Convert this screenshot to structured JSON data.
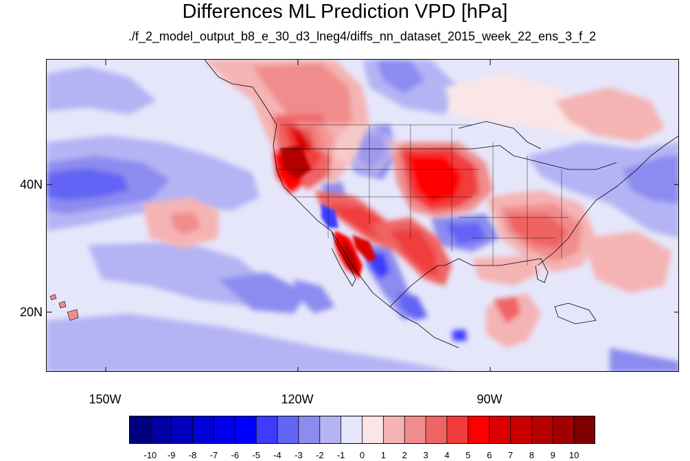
{
  "title": "Differences ML Prediction VPD [hPa]",
  "subtitle": "./f_2_model_output_b8_e_30_d3_lneg4/diffs_nn_dataset_2015_week_22_ens_3_f_2",
  "axes": {
    "longitude_labels": [
      "150W",
      "120W",
      "90W"
    ],
    "latitude_labels": [
      "40N",
      "20N"
    ]
  },
  "colorbar": {
    "labels": [
      "-10",
      "-9",
      "-8",
      "-7",
      "-6",
      "-5",
      "-4",
      "-3",
      "-2",
      "-1",
      "0",
      "1",
      "2",
      "3",
      "4",
      "5",
      "6",
      "7",
      "8",
      "9",
      "10"
    ],
    "colors": [
      "#00007f",
      "#0000a0",
      "#0000bd",
      "#0000d7",
      "#0000ef",
      "#0000ff",
      "#3c3cff",
      "#6464f5",
      "#8c8cf0",
      "#b4b4f5",
      "#e6e6fa",
      "#fae6e6",
      "#f5b4b4",
      "#f08c8c",
      "#f06464",
      "#f03c3c",
      "#ff0000",
      "#dc0000",
      "#c80000",
      "#b40000",
      "#a00000",
      "#7f0000"
    ]
  },
  "colors": {
    "ocean_base": "#e6e6fa",
    "negative_accent": "#3c3cff",
    "positive_accent": "#f03c3c"
  }
}
